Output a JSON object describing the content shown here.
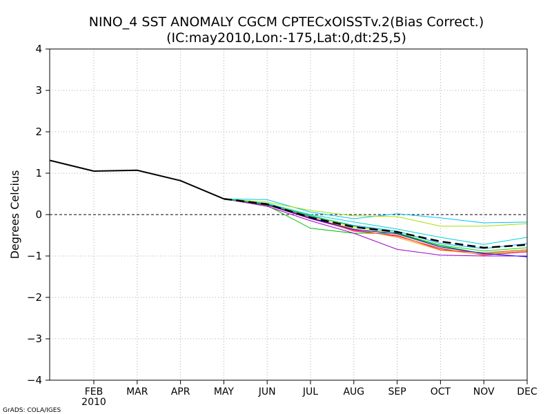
{
  "chart_data": {
    "type": "line",
    "title": "NINO_4 SST ANOMALY CGCM CPTECxOISSTv.2(Bias Correct.)",
    "subtitle": "(IC:may2010,Lon:-175,Lat:0,dt:25,5)",
    "ylabel": "Degrees Celcius",
    "xlabel": "",
    "ylim": [
      -4,
      4
    ],
    "yticks": [
      -4,
      -3,
      -2,
      -1,
      0,
      1,
      2,
      3,
      4
    ],
    "x_start_index": -0.02,
    "x_end_index": 10,
    "categories": [
      "FEB",
      "MAR",
      "APR",
      "MAY",
      "JUN",
      "JUL",
      "AUG",
      "SEP",
      "OCT",
      "NOV",
      "DEC"
    ],
    "year_label": "2010",
    "grid": true,
    "zero_line": true,
    "footer": "GrADS: COLA/IGES",
    "observed": {
      "name": "observed",
      "color": "#000000",
      "points": [
        [
          -1,
          1.31
        ],
        [
          0,
          1.05
        ],
        [
          1,
          1.07
        ],
        [
          2,
          0.82
        ],
        [
          3,
          0.38
        ]
      ]
    },
    "members": [
      {
        "name": "member-1",
        "color": "#00c0ff",
        "values": [
          0.38,
          0.36,
          0.06,
          -0.1,
          0.02,
          -0.08,
          -0.2,
          -0.18
        ]
      },
      {
        "name": "member-2",
        "color": "#a0e000",
        "values": [
          0.38,
          0.3,
          0.1,
          -0.03,
          -0.05,
          -0.28,
          -0.28,
          -0.22
        ]
      },
      {
        "name": "member-3",
        "color": "#00d2d2",
        "values": [
          0.38,
          0.27,
          0.0,
          -0.18,
          -0.35,
          -0.55,
          -0.72,
          -0.55
        ]
      },
      {
        "name": "member-4",
        "color": "#00c000",
        "values": [
          0.38,
          0.22,
          -0.33,
          -0.45,
          -0.45,
          -0.75,
          -0.95,
          -0.88
        ]
      },
      {
        "name": "member-5",
        "color": "#a000c8",
        "values": [
          0.38,
          0.2,
          -0.15,
          -0.45,
          -0.84,
          -0.98,
          -1.0,
          -1.0
        ]
      },
      {
        "name": "member-6",
        "color": "#f00082",
        "values": [
          0.38,
          0.23,
          -0.1,
          -0.38,
          -0.52,
          -0.82,
          -0.98,
          -0.9
        ]
      },
      {
        "name": "member-7",
        "color": "#e6dc32",
        "values": [
          0.38,
          0.26,
          -0.05,
          -0.3,
          -0.48,
          -0.8,
          -0.93,
          -0.85
        ]
      },
      {
        "name": "member-8",
        "color": "#f0a000",
        "values": [
          0.38,
          0.25,
          -0.08,
          -0.34,
          -0.55,
          -0.86,
          -0.96,
          -0.88
        ]
      },
      {
        "name": "member-9",
        "color": "#fa3c3c",
        "values": [
          0.38,
          0.24,
          -0.06,
          -0.4,
          -0.5,
          -0.85,
          -0.92,
          -0.85
        ]
      },
      {
        "name": "member-10",
        "color": "#0000ff",
        "values": [
          0.38,
          0.24,
          -0.09,
          -0.36,
          -0.46,
          -0.78,
          -0.94,
          -1.02
        ]
      },
      {
        "name": "member-11",
        "color": "#00a0ff",
        "values": [
          0.38,
          0.26,
          -0.04,
          -0.26,
          -0.4,
          -0.7,
          -0.82,
          -0.7
        ]
      },
      {
        "name": "member-12",
        "color": "#00dc00",
        "values": [
          0.38,
          0.25,
          -0.02,
          -0.28,
          -0.44,
          -0.74,
          -0.88,
          -0.8
        ]
      }
    ],
    "ensemble_mean": {
      "name": "ensemble-mean",
      "color": "#000000",
      "dashed": true,
      "values": [
        0.38,
        0.25,
        -0.07,
        -0.3,
        -0.42,
        -0.65,
        -0.8,
        -0.73
      ]
    },
    "forecast_start_index": 3
  }
}
